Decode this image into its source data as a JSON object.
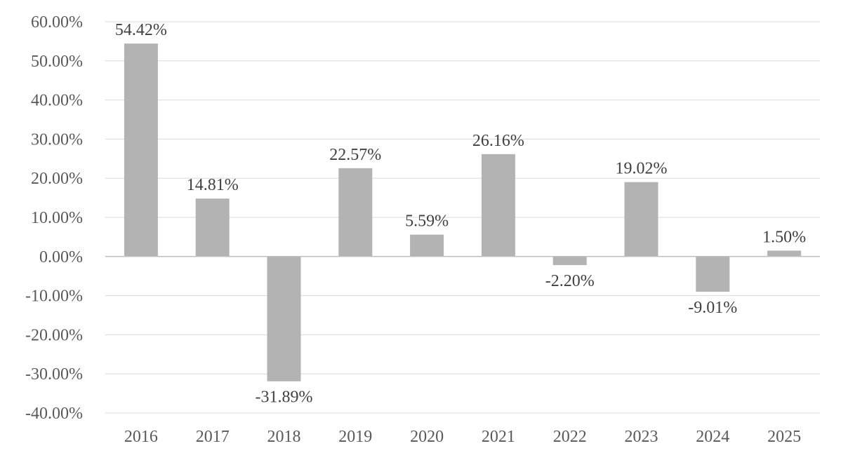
{
  "chart_data": {
    "type": "bar",
    "categories": [
      "2016",
      "2017",
      "2018",
      "2019",
      "2020",
      "2021",
      "2022",
      "2023",
      "2024",
      "2025"
    ],
    "values": [
      54.42,
      14.81,
      -31.89,
      22.57,
      5.59,
      26.16,
      -2.2,
      19.02,
      -9.01,
      1.5
    ],
    "data_labels": [
      "54.42%",
      "14.81%",
      "-31.89%",
      "22.57%",
      "5.59%",
      "26.16%",
      "-2.20%",
      "19.02%",
      "-9.01%",
      "1.50%"
    ],
    "yticks": [
      60,
      50,
      40,
      30,
      20,
      10,
      0,
      -10,
      -20,
      -30,
      -40
    ],
    "ytick_labels": [
      "60.00%",
      "50.00%",
      "40.00%",
      "30.00%",
      "20.00%",
      "10.00%",
      "0.00%",
      "-10.00%",
      "-20.00%",
      "-30.00%",
      "-40.00%"
    ],
    "ylim": [
      -40,
      60
    ],
    "grid": true,
    "legend": "none",
    "title": "",
    "xlabel": "",
    "ylabel": "",
    "bar_color": "#b3b3b3"
  }
}
